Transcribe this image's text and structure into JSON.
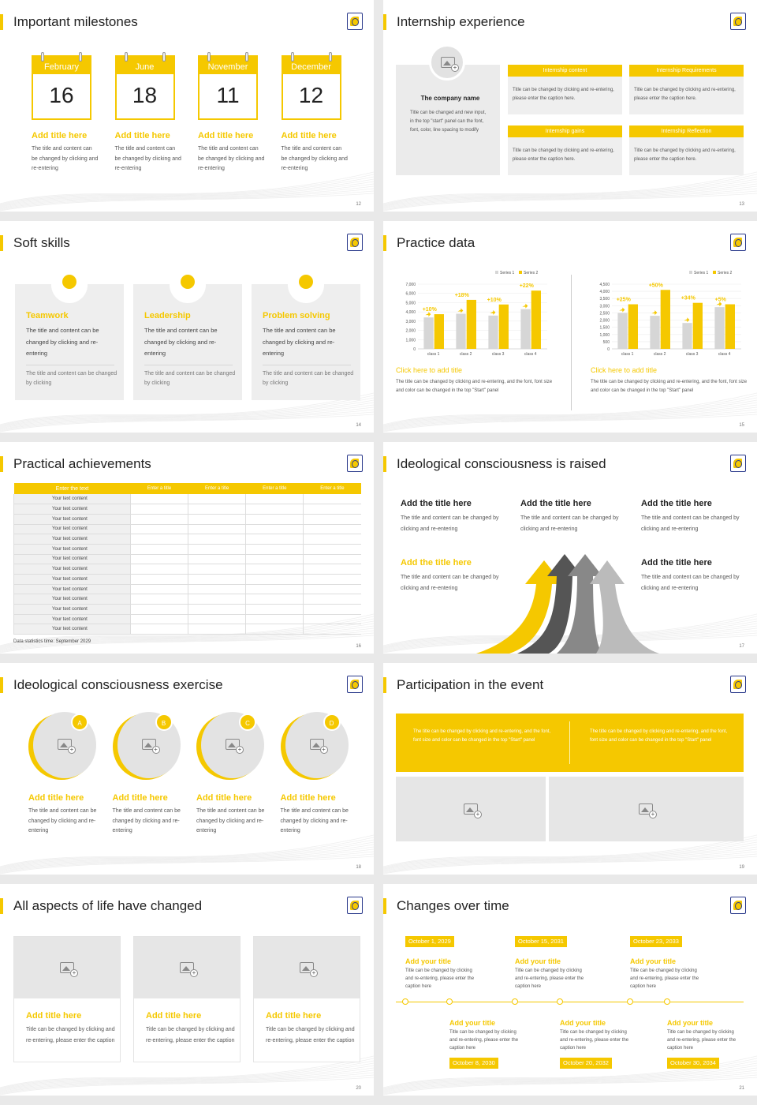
{
  "slides": {
    "s12": {
      "title": "Important milestones",
      "page": "12",
      "items": [
        {
          "month": "February",
          "day": "16",
          "heading": "Add title here",
          "text": "The title and content can be changed by clicking and re-entering"
        },
        {
          "month": "June",
          "day": "18",
          "heading": "Add title here",
          "text": "The title and content can be changed by clicking and re-entering"
        },
        {
          "month": "November",
          "day": "11",
          "heading": "Add title here",
          "text": "The title and content can be changed by clicking and re-entering"
        },
        {
          "month": "December",
          "day": "12",
          "heading": "Add title here",
          "text": "The title and content can be changed by clicking and re-entering"
        }
      ]
    },
    "s13": {
      "title": "Internship experience",
      "page": "13",
      "company": "The company name",
      "company_text": "Title can be changed and new input, in the top \"start\" panel can the font, font, color, line spacing to modify",
      "boxes": [
        {
          "label": "Internship content",
          "text": "Title can be changed by clicking and re-entering, please enter the caption here."
        },
        {
          "label": "Internship Requirements",
          "text": "Title can be changed by clicking and re-entering, please enter the caption here."
        },
        {
          "label": "Internship gains",
          "text": "Title can be changed by clicking and re-entering, please enter the caption here."
        },
        {
          "label": "Internship Reflection",
          "text": "Title can be changed by clicking and re-entering, please enter the caption here."
        }
      ]
    },
    "s14": {
      "title": "Soft skills",
      "page": "14",
      "cards": [
        {
          "heading": "Teamwork",
          "text": "The title and content can be changed by clicking and re-entering",
          "sub": "The title and content can be changed by clicking"
        },
        {
          "heading": "Leadership",
          "text": "The title and content can be changed by clicking and re-entering",
          "sub": "The title and content can be changed by clicking"
        },
        {
          "heading": "Problem solving",
          "text": "The title and content can be changed by clicking and re-entering",
          "sub": "The title and content can be changed by clicking"
        }
      ]
    },
    "s15": {
      "title": "Practice data",
      "page": "15",
      "left_caption": "Click here to add title",
      "left_text": "The title can be changed by clicking and re-entering, and the font, font size and color can be changed in the top \"Start\" panel",
      "right_caption": "Click here to add title",
      "right_text": "The title can be changed by clicking and re-entering, and the font, font size and color can be changed in the top \"Start\" panel"
    },
    "s16": {
      "title": "Practical achievements",
      "page": "16",
      "headers": [
        "Enter the text",
        "Enter a title",
        "Enter a title",
        "Enter a title",
        "Enter a title"
      ],
      "row_label": "Your text content",
      "row_count": 14,
      "footnote": "Data statistics time: September 2029"
    },
    "s17": {
      "title": "Ideological consciousness is raised",
      "page": "17",
      "blocks": [
        {
          "heading": "Add the title here",
          "text": "The title and content can be changed by clicking and re-entering",
          "yellow": false
        },
        {
          "heading": "Add the title here",
          "text": "The title and content can be changed by clicking and re-entering",
          "yellow": false
        },
        {
          "heading": "Add the title here",
          "text": "The title and content can be changed by clicking and re-entering",
          "yellow": false
        },
        {
          "heading": "Add the title here",
          "text": "The title and content can be changed by clicking and re-entering",
          "yellow": true
        },
        {
          "heading": "Add the title here",
          "text": "The title and content can be changed by clicking and re-entering",
          "yellow": false
        }
      ]
    },
    "s18": {
      "title": "Ideological consciousness exercise",
      "page": "18",
      "items": [
        {
          "badge": "A",
          "heading": "Add title here",
          "text": "The title and content can be changed by clicking and re-entering"
        },
        {
          "badge": "B",
          "heading": "Add title here",
          "text": "The title and content can be changed by clicking and re-entering"
        },
        {
          "badge": "C",
          "heading": "Add title here",
          "text": "The title and content can be changed by clicking and re-entering"
        },
        {
          "badge": "D",
          "heading": "Add title here",
          "text": "The title and content can be changed by clicking and re-entering"
        }
      ]
    },
    "s19": {
      "title": "Participation in the event",
      "page": "19",
      "texts": [
        "The title can be changed by clicking and re-entering, and the font, font size and color can be changed in the top \"Start\" panel",
        "The title can be changed by clicking and re-entering, and the font, font size and color can be changed in the top \"Start\" panel"
      ]
    },
    "s20": {
      "title": "All aspects of life have changed",
      "page": "20",
      "cards": [
        {
          "heading": "Add title here",
          "text": "Title can be changed by clicking and re-entering, please enter the caption"
        },
        {
          "heading": "Add title here",
          "text": "Title can be changed by clicking and re-entering, please enter the caption"
        },
        {
          "heading": "Add title here",
          "text": "Title can be changed by clicking and re-entering, please enter the caption"
        }
      ]
    },
    "s21": {
      "title": "Changes over time",
      "page": "21",
      "top": [
        {
          "date": "October 1, 2029",
          "heading": "Add your title",
          "text": "Title can be changed by clicking and re-entering, please enter the caption here"
        },
        {
          "date": "October 15, 2031",
          "heading": "Add your title",
          "text": "Title can be changed by clicking and re-entering, please enter the caption here"
        },
        {
          "date": "October 23, 2033",
          "heading": "Add your title",
          "text": "Title can be changed by clicking and re-entering, please enter the caption here"
        }
      ],
      "bottom": [
        {
          "date": "October 8, 2030",
          "heading": "Add your title",
          "text": "Title can be changed by clicking and re-entering, please enter the caption here"
        },
        {
          "date": "October 20, 2032",
          "heading": "Add your title",
          "text": "Title can be changed by clicking and re-entering, please enter the caption here"
        },
        {
          "date": "October 30, 2034",
          "heading": "Add your title",
          "text": "Title can be changed by clicking and re-entering, please enter the caption here"
        }
      ]
    }
  },
  "colors": {
    "accent": "#f5c800",
    "grey": "#e6e6e6",
    "dark": "#222222"
  },
  "chart_data": [
    {
      "type": "bar",
      "categories": [
        "class 1",
        "class 2",
        "class 3",
        "class 4"
      ],
      "series": [
        {
          "name": "Series 1",
          "values": [
            3400,
            3800,
            3600,
            4300
          ]
        },
        {
          "name": "Series 2",
          "values": [
            3750,
            5300,
            4800,
            6300
          ]
        }
      ],
      "annotations": [
        "+10%",
        "+18%",
        "+10%",
        "+22%"
      ],
      "ylim": [
        0,
        7000
      ],
      "yticks": [
        "7,000",
        "6,000",
        "5,000",
        "4,000",
        "3,000",
        "2,000",
        "1,000",
        "0"
      ],
      "legend": "top-right"
    },
    {
      "type": "bar",
      "categories": [
        "class 1",
        "class 2",
        "class 3",
        "class 4"
      ],
      "series": [
        {
          "name": "Series 1",
          "values": [
            2500,
            2300,
            1800,
            2900
          ]
        },
        {
          "name": "Series 2",
          "values": [
            3100,
            4100,
            3200,
            3100
          ]
        }
      ],
      "annotations": [
        "+25%",
        "+50%",
        "+34%",
        "+5%"
      ],
      "ylim": [
        0,
        4500
      ],
      "yticks": [
        "4,500",
        "4,000",
        "3,500",
        "3,000",
        "2,500",
        "2,000",
        "1,500",
        "1,000",
        "500",
        "0"
      ],
      "legend": "top-right"
    }
  ]
}
